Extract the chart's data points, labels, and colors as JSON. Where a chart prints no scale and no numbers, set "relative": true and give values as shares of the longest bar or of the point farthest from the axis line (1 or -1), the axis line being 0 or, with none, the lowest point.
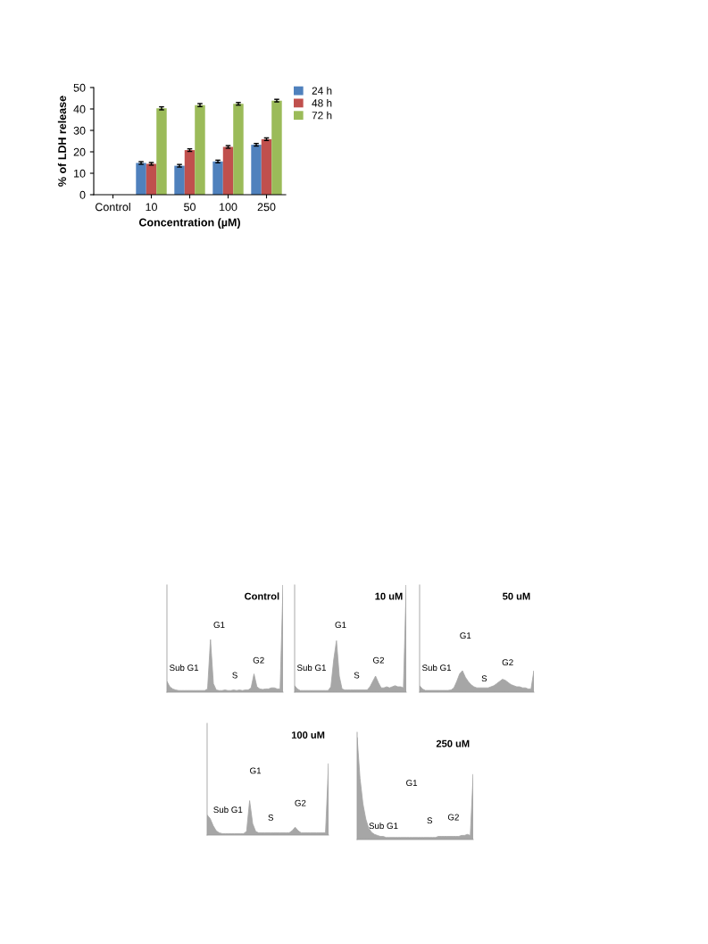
{
  "chart_data": [
    {
      "type": "bar",
      "xlabel": "Concentration (µM)",
      "ylabel": "% of LDH release",
      "categories": [
        "Control",
        "10",
        "50",
        "100",
        "250"
      ],
      "ylim": [
        0,
        50
      ],
      "yticks": [
        0,
        10,
        20,
        30,
        40,
        50
      ],
      "grid": false,
      "legend": "top right",
      "series": [
        {
          "name": "24 h",
          "color": "#4f81bd",
          "values": [
            null,
            14.8,
            13.5,
            15.5,
            23.3
          ],
          "errors": [
            null,
            0.6,
            0.6,
            0.6,
            0.6
          ]
        },
        {
          "name": "48 h",
          "color": "#c0504d",
          "values": [
            null,
            14.4,
            20.8,
            22.3,
            25.9
          ],
          "errors": [
            null,
            0.6,
            0.6,
            0.6,
            0.6
          ]
        },
        {
          "name": "72 h",
          "color": "#9bbb59",
          "values": [
            null,
            40.3,
            41.8,
            42.4,
            43.9
          ],
          "errors": [
            null,
            0.7,
            0.7,
            0.6,
            0.6
          ]
        }
      ]
    },
    {
      "type": "area",
      "title": "Control",
      "relative": true,
      "annotations": [
        "G1",
        "Sub G1",
        "S",
        "G2"
      ],
      "categories": [
        null,
        null,
        null,
        null,
        null,
        null,
        null,
        null,
        null,
        null,
        null,
        null,
        null,
        null,
        null,
        null,
        null,
        null,
        null,
        null,
        null,
        null,
        null,
        null,
        null,
        null,
        null,
        null,
        null,
        null,
        null,
        null,
        null,
        null,
        null,
        null,
        null,
        null,
        null,
        null,
        null
      ],
      "series": [
        {
          "color": "#a6a6a6",
          "values": [
            0.1,
            0.05,
            0.03,
            0.02,
            0.015,
            0.015,
            0.015,
            0.015,
            0.015,
            0.015,
            0.015,
            0.015,
            0.015,
            0.015,
            0.03,
            0.49,
            0.08,
            0.02,
            0.015,
            0.015,
            0.02,
            0.015,
            0.015,
            0.02,
            0.015,
            0.02,
            0.015,
            0.02,
            0.02,
            0.04,
            0.17,
            0.05,
            0.03,
            0.025,
            0.03,
            0.03,
            0.04,
            0.04,
            0.03,
            0.03,
            1.0
          ]
        }
      ]
    },
    {
      "type": "area",
      "title": "10 uM",
      "relative": true,
      "annotations": [
        "G1",
        "Sub G1",
        "S",
        "G2"
      ],
      "categories": [
        null,
        null,
        null,
        null,
        null,
        null,
        null,
        null,
        null,
        null,
        null,
        null,
        null,
        null,
        null,
        null,
        null,
        null,
        null,
        null,
        null,
        null,
        null,
        null,
        null,
        null,
        null,
        null,
        null,
        null,
        null,
        null,
        null,
        null,
        null,
        null,
        null,
        null,
        null,
        null,
        null
      ],
      "series": [
        {
          "color": "#a6a6a6",
          "values": [
            0.06,
            0.03,
            0.015,
            0.015,
            0.015,
            0.015,
            0.015,
            0.015,
            0.015,
            0.015,
            0.015,
            0.015,
            0.015,
            0.05,
            0.3,
            0.48,
            0.15,
            0.03,
            0.02,
            0.02,
            0.02,
            0.02,
            0.02,
            0.02,
            0.02,
            0.02,
            0.02,
            0.05,
            0.1,
            0.15,
            0.09,
            0.04,
            0.04,
            0.05,
            0.04,
            0.05,
            0.06,
            0.05,
            0.05,
            0.04,
            1.0
          ]
        }
      ]
    },
    {
      "type": "area",
      "title": "50 uM",
      "relative": true,
      "annotations": [
        "G1",
        "Sub G1",
        "S",
        "G2"
      ],
      "categories": [
        null,
        null,
        null,
        null,
        null,
        null,
        null,
        null,
        null,
        null,
        null,
        null,
        null,
        null,
        null,
        null,
        null,
        null,
        null,
        null,
        null,
        null,
        null,
        null,
        null,
        null,
        null,
        null,
        null,
        null,
        null,
        null,
        null,
        null,
        null,
        null,
        null,
        null,
        null,
        null,
        null
      ],
      "series": [
        {
          "color": "#a6a6a6",
          "values": [
            0.3,
            0.15,
            0.08,
            0.08,
            0.08,
            0.08,
            0.08,
            0.08,
            0.08,
            0.08,
            0.08,
            0.1,
            0.2,
            0.5,
            0.85,
            1.0,
            0.7,
            0.5,
            0.35,
            0.25,
            0.2,
            0.2,
            0.2,
            0.2,
            0.2,
            0.25,
            0.3,
            0.4,
            0.5,
            0.6,
            0.55,
            0.45,
            0.35,
            0.3,
            0.25,
            0.25,
            0.2,
            0.2,
            0.15,
            0.15,
            1.0
          ]
        }
      ]
    },
    {
      "type": "area",
      "title": "100 uM",
      "relative": true,
      "annotations": [
        "G1",
        "Sub G1",
        "S",
        "G2"
      ],
      "categories": [
        null,
        null,
        null,
        null,
        null,
        null,
        null,
        null,
        null,
        null,
        null,
        null,
        null,
        null,
        null,
        null,
        null,
        null,
        null,
        null,
        null,
        null,
        null,
        null,
        null,
        null,
        null,
        null,
        null,
        null,
        null,
        null,
        null,
        null,
        null,
        null,
        null,
        null,
        null,
        null,
        null
      ],
      "series": [
        {
          "color": "#a6a6a6",
          "values": [
            0.28,
            0.23,
            0.13,
            0.06,
            0.03,
            0.02,
            0.02,
            0.02,
            0.02,
            0.02,
            0.02,
            0.02,
            0.02,
            0.05,
            0.48,
            0.16,
            0.05,
            0.03,
            0.03,
            0.03,
            0.03,
            0.03,
            0.03,
            0.03,
            0.03,
            0.03,
            0.03,
            0.03,
            0.06,
            0.11,
            0.06,
            0.03,
            0.03,
            0.03,
            0.03,
            0.03,
            0.03,
            0.03,
            0.03,
            0.03,
            1.0
          ]
        }
      ]
    },
    {
      "type": "area",
      "title": "250 uM",
      "relative": true,
      "annotations": [
        "G1",
        "Sub G1",
        "S",
        "G2"
      ],
      "categories": [
        null,
        null,
        null,
        null,
        null,
        null,
        null,
        null,
        null,
        null,
        null,
        null,
        null,
        null,
        null,
        null,
        null,
        null,
        null,
        null,
        null,
        null,
        null,
        null,
        null,
        null,
        null,
        null,
        null,
        null,
        null,
        null,
        null,
        null,
        null,
        null,
        null,
        null,
        null,
        null,
        null
      ],
      "series": [
        {
          "color": "#a6a6a6",
          "values": [
            1.0,
            0.6,
            0.35,
            0.2,
            0.11,
            0.07,
            0.05,
            0.04,
            0.03,
            0.03,
            0.02,
            0.02,
            0.02,
            0.02,
            0.02,
            0.02,
            0.02,
            0.02,
            0.02,
            0.02,
            0.02,
            0.02,
            0.02,
            0.02,
            0.02,
            0.02,
            0.02,
            0.02,
            0.03,
            0.03,
            0.03,
            0.03,
            0.03,
            0.03,
            0.03,
            0.03,
            0.04,
            0.04,
            0.05,
            0.04,
            0.64
          ]
        }
      ]
    }
  ]
}
